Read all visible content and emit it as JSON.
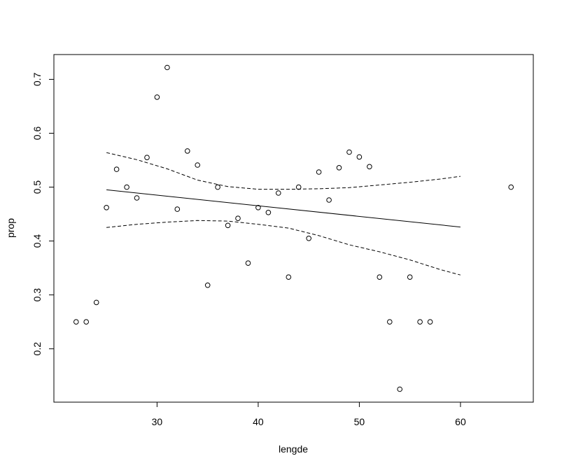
{
  "chart_data": {
    "type": "scatter",
    "xlabel": "lengde",
    "ylabel": "prop",
    "xlim": [
      19.8,
      67.2
    ],
    "ylim": [
      0.101,
      0.746
    ],
    "x_ticks": [
      30,
      40,
      50,
      60
    ],
    "y_ticks": [
      0.2,
      0.3,
      0.4,
      0.5,
      0.6,
      0.7
    ],
    "grid": false,
    "legend": "none",
    "points": [
      {
        "x": 22,
        "y": 0.25
      },
      {
        "x": 23,
        "y": 0.25
      },
      {
        "x": 24,
        "y": 0.286
      },
      {
        "x": 25,
        "y": 0.462
      },
      {
        "x": 26,
        "y": 0.533
      },
      {
        "x": 27,
        "y": 0.5
      },
      {
        "x": 28,
        "y": 0.48
      },
      {
        "x": 29,
        "y": 0.555
      },
      {
        "x": 30,
        "y": 0.667
      },
      {
        "x": 31,
        "y": 0.722
      },
      {
        "x": 32,
        "y": 0.459
      },
      {
        "x": 33,
        "y": 0.567
      },
      {
        "x": 34,
        "y": 0.541
      },
      {
        "x": 35,
        "y": 0.318
      },
      {
        "x": 36,
        "y": 0.5
      },
      {
        "x": 37,
        "y": 0.429
      },
      {
        "x": 38,
        "y": 0.442
      },
      {
        "x": 39,
        "y": 0.359
      },
      {
        "x": 40,
        "y": 0.462
      },
      {
        "x": 41,
        "y": 0.453
      },
      {
        "x": 42,
        "y": 0.489
      },
      {
        "x": 43,
        "y": 0.333
      },
      {
        "x": 44,
        "y": 0.5
      },
      {
        "x": 45,
        "y": 0.405
      },
      {
        "x": 46,
        "y": 0.528
      },
      {
        "x": 47,
        "y": 0.476
      },
      {
        "x": 48,
        "y": 0.536
      },
      {
        "x": 49,
        "y": 0.565
      },
      {
        "x": 50,
        "y": 0.556
      },
      {
        "x": 51,
        "y": 0.538
      },
      {
        "x": 52,
        "y": 0.333
      },
      {
        "x": 53,
        "y": 0.25
      },
      {
        "x": 54,
        "y": 0.125
      },
      {
        "x": 55,
        "y": 0.333
      },
      {
        "x": 56,
        "y": 0.25
      },
      {
        "x": 57,
        "y": 0.25
      },
      {
        "x": 65,
        "y": 0.5
      }
    ],
    "fit_line": {
      "x": [
        25,
        60
      ],
      "y": [
        0.495,
        0.426
      ]
    },
    "confidence_upper": {
      "x": [
        25,
        28,
        31,
        34,
        37,
        40,
        43,
        46,
        49,
        52,
        55,
        58,
        60
      ],
      "y": [
        0.564,
        0.551,
        0.534,
        0.513,
        0.501,
        0.496,
        0.496,
        0.497,
        0.499,
        0.504,
        0.509,
        0.515,
        0.52
      ]
    },
    "confidence_lower": {
      "x": [
        25,
        28,
        31,
        34,
        37,
        40,
        43,
        46,
        49,
        52,
        55,
        58,
        60
      ],
      "y": [
        0.425,
        0.431,
        0.435,
        0.438,
        0.437,
        0.431,
        0.424,
        0.41,
        0.393,
        0.38,
        0.365,
        0.347,
        0.337
      ]
    }
  }
}
